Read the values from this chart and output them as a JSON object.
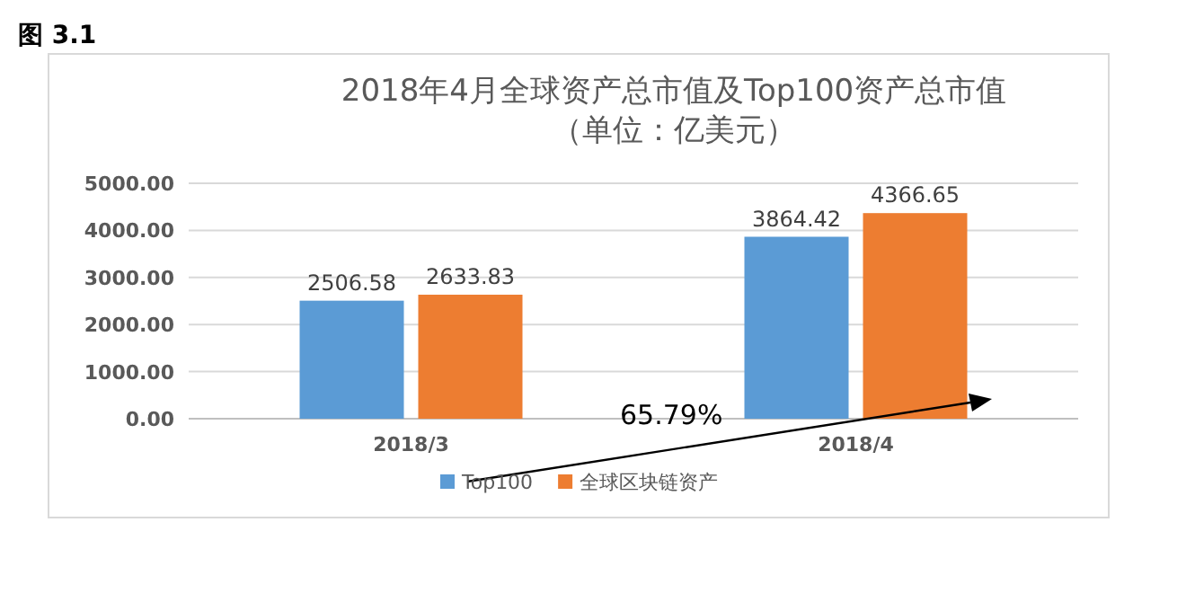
{
  "chart_data": {
    "type": "bar",
    "title": "2018年4月全球资产总市值及Top100资产总市值",
    "subtitle": "（单位：亿美元）",
    "categories": [
      "2018/3",
      "2018/4"
    ],
    "series": [
      {
        "name": "Top100",
        "color": "#5b9bd5",
        "values": [
          2506.58,
          3864.42
        ]
      },
      {
        "name": "全球区块链资产",
        "color": "#ed7d31",
        "values": [
          2633.83,
          4366.65
        ]
      }
    ],
    "ylim": [
      0,
      5000
    ],
    "yticks": [
      {
        "value": 0,
        "label": "0.00"
      },
      {
        "value": 1000,
        "label": "1000.00"
      },
      {
        "value": 2000,
        "label": "2000.00"
      },
      {
        "value": 3000,
        "label": "3000.00"
      },
      {
        "value": 4000,
        "label": "4000.00"
      },
      {
        "value": 5000,
        "label": "5000.00"
      }
    ],
    "grid": "y",
    "legend": "bottom",
    "data_labels": true,
    "annotations": [
      "图 3.1",
      "65.79%"
    ]
  }
}
